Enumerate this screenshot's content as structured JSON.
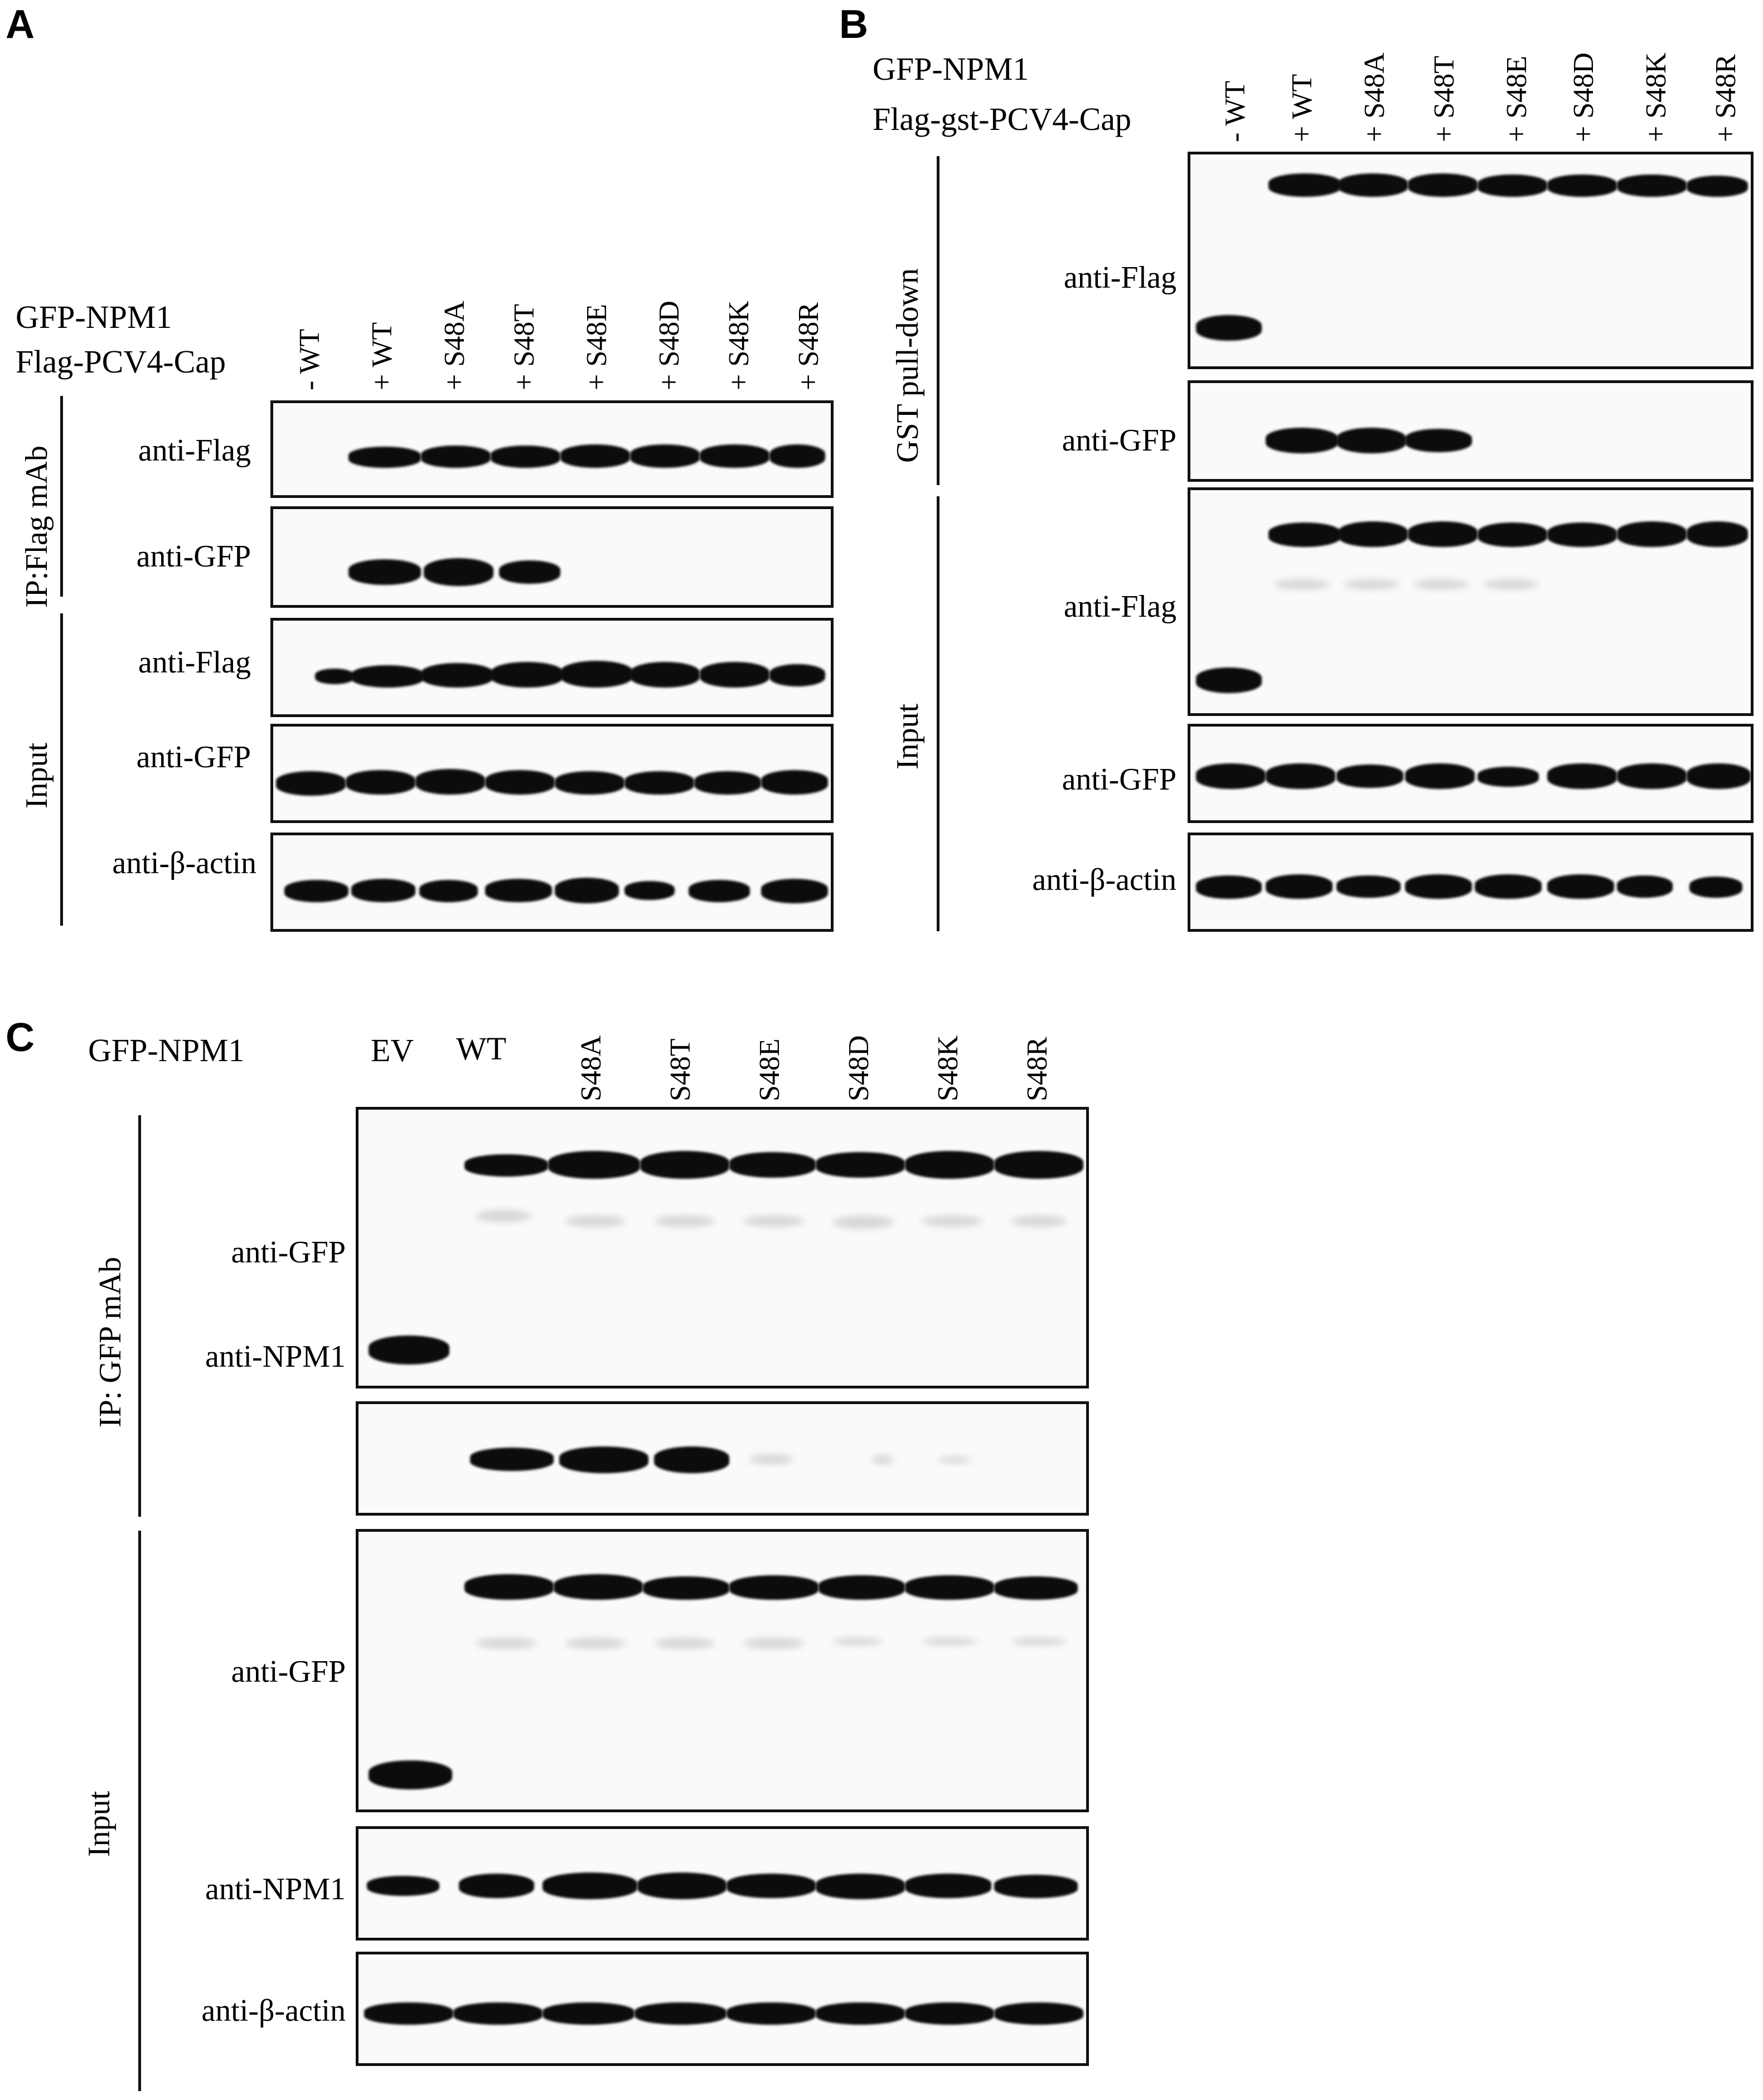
{
  "panels": {
    "A": {
      "letter": "A",
      "construct1": "GFP-NPM1",
      "construct2": "Flag-PCV4-Cap",
      "lanes": [
        "- WT",
        "+ WT",
        "+ S48A",
        "+ S48T",
        "+ S48E",
        "+ S48D",
        "+ S48K",
        "+ S48R"
      ],
      "group_ip": "IP:Flag mAb",
      "group_input": "Input",
      "blots": [
        "anti-Flag",
        "anti-GFP",
        "anti-Flag",
        "anti-GFP",
        "anti-β-actin"
      ]
    },
    "B": {
      "letter": "B",
      "construct1": "GFP-NPM1",
      "construct2": "Flag-gst-PCV4-Cap",
      "lanes": [
        "- WT",
        "+ WT",
        "+ S48A",
        "+ S48T",
        "+ S48E",
        "+ S48D",
        "+ S48K",
        "+ S48R"
      ],
      "group_pull": "GST pull-down",
      "group_input": "Input",
      "blots": [
        "anti-Flag",
        "anti-GFP",
        "anti-Flag",
        "anti-GFP",
        "anti-β-actin"
      ]
    },
    "C": {
      "letter": "C",
      "construct1": "GFP-NPM1",
      "lanes": [
        "EV",
        "WT",
        "S48A",
        "S48T",
        "S48E",
        "S48D",
        "S48K",
        "S48R"
      ],
      "group_ip": "IP: GFP mAb",
      "group_input": "Input",
      "blots": [
        "anti-GFP",
        "anti-NPM1",
        "anti-GFP",
        "anti-NPM1",
        "anti-β-actin"
      ]
    }
  }
}
